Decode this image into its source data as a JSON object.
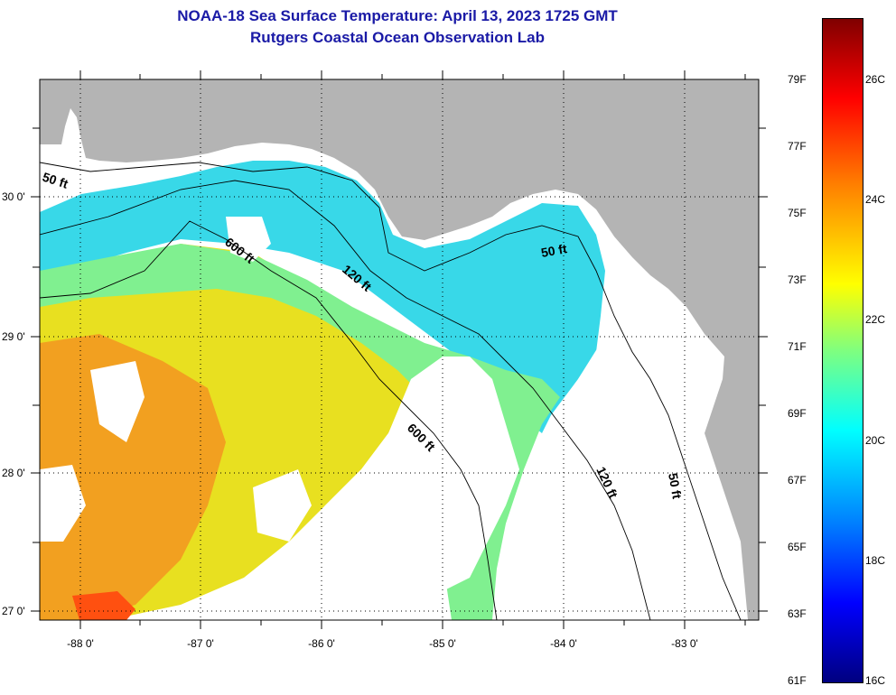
{
  "title": {
    "line1": "NOAA-18 Sea Surface Temperature:  April 13, 2023 1725 GMT",
    "line2": "Rutgers Coastal Ocean Observation Lab"
  },
  "colors": {
    "title": "#1a1aa6",
    "land": "#b4b4b4",
    "no_data": "#ffffff",
    "colormap": [
      "#00007f",
      "#0000ff",
      "#007fff",
      "#00ffff",
      "#7fff7f",
      "#ffff00",
      "#ff7f00",
      "#ff0000",
      "#7f0000"
    ]
  },
  "map": {
    "lat_labels": [
      "30 0'",
      "29 0'",
      "28 0'",
      "27 0'"
    ],
    "lon_labels": [
      "-88 0'",
      "-87 0'",
      "-86 0'",
      "-85 0'",
      "-84 0'",
      "-83 0'"
    ],
    "grid": "dotted",
    "contours": [
      {
        "label": "50 ft"
      },
      {
        "label": "600 ft"
      },
      {
        "label": "120 ft"
      },
      {
        "label": "50 ft"
      },
      {
        "label": "600 ft"
      },
      {
        "label": "120 ft"
      },
      {
        "label": "50 ft"
      }
    ]
  },
  "colorbar": {
    "fahrenheit": [
      "79F",
      "77F",
      "75F",
      "73F",
      "71F",
      "69F",
      "67F",
      "65F",
      "63F",
      "61F"
    ],
    "celsius": [
      "26C",
      "24C",
      "22C",
      "20C",
      "18C",
      "16C"
    ]
  }
}
